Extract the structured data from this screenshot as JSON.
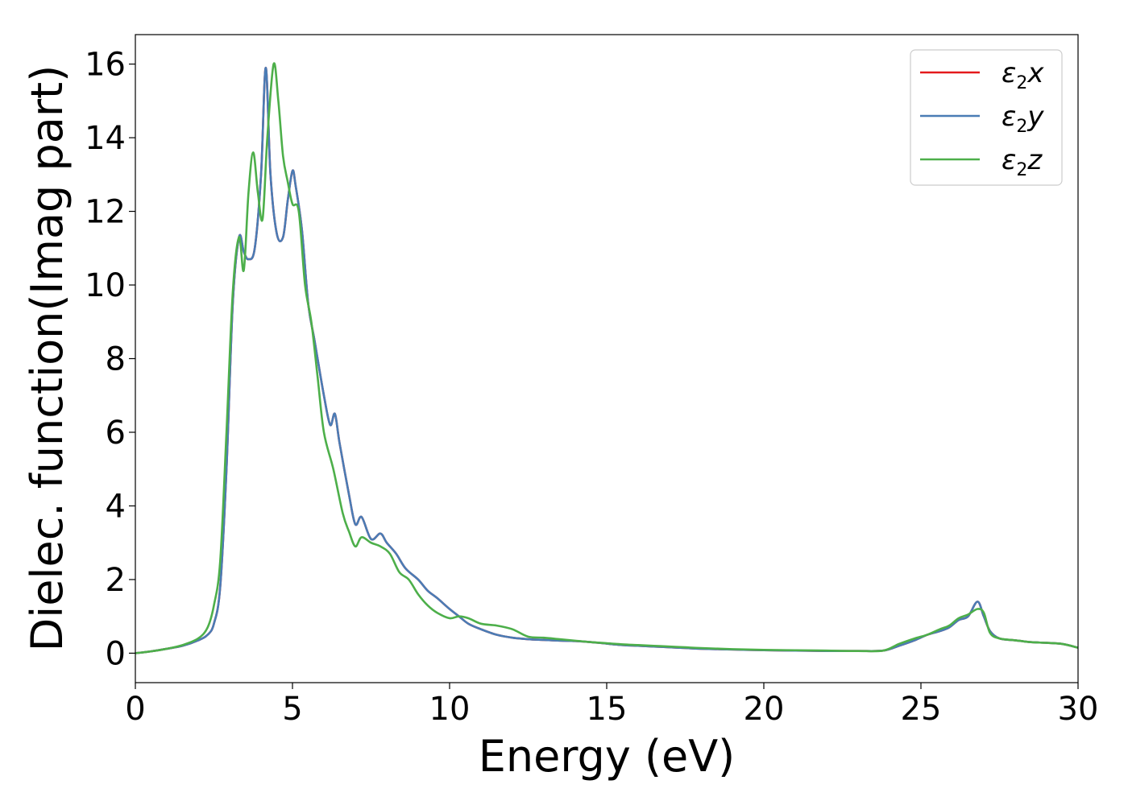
{
  "chart_data": {
    "type": "line",
    "title": "",
    "xlabel": "Energy (eV)",
    "ylabel": "Dielec. function(Imag part)",
    "xlim": [
      0,
      30
    ],
    "ylim": [
      -0.8,
      16.8
    ],
    "xticks": [
      0,
      5,
      10,
      15,
      20,
      25,
      30
    ],
    "xtick_labels": [
      "0",
      "5",
      "10",
      "15",
      "20",
      "25",
      "30"
    ],
    "yticks": [
      0,
      2,
      4,
      6,
      8,
      10,
      12,
      14,
      16
    ],
    "ytick_labels": [
      "0",
      "2",
      "4",
      "6",
      "8",
      "10",
      "12",
      "14",
      "16"
    ],
    "grid": false,
    "legend_position": "top-right",
    "series": [
      {
        "name": "ε2x",
        "name_main": "ε",
        "name_sub": "2",
        "name_tail": "x",
        "color": "#e41a1c",
        "x": [
          0,
          0.5,
          1,
          1.5,
          2,
          2.3,
          2.5,
          2.7,
          2.9,
          3.1,
          3.3,
          3.45,
          3.6,
          3.8,
          4,
          4.15,
          4.3,
          4.5,
          4.7,
          4.85,
          5,
          5.1,
          5.3,
          5.5,
          5.7,
          6,
          6.2,
          6.35,
          6.5,
          6.8,
          7,
          7.2,
          7.5,
          7.8,
          8,
          8.3,
          8.6,
          9,
          9.3,
          9.6,
          10,
          10.3,
          10.6,
          11,
          11.5,
          12,
          12.5,
          13,
          13.5,
          14,
          14.5,
          15,
          15.5,
          16,
          16.5,
          17,
          17.5,
          18,
          19,
          20,
          21,
          22,
          23,
          23.8,
          24.3,
          24.8,
          25.2,
          25.6,
          25.9,
          26.2,
          26.5,
          26.8,
          27,
          27.2,
          27.5,
          28,
          28.5,
          29,
          29.5,
          30
        ],
        "y": [
          0,
          0.05,
          0.12,
          0.2,
          0.35,
          0.5,
          0.8,
          1.8,
          5,
          9.5,
          11.3,
          10.9,
          10.7,
          11,
          13,
          15.9,
          13,
          11.4,
          11.3,
          12.3,
          13.1,
          12.7,
          11.5,
          9.5,
          8.5,
          7,
          6.2,
          6.5,
          5.7,
          4.3,
          3.5,
          3.7,
          3.1,
          3.25,
          3,
          2.7,
          2.3,
          2,
          1.7,
          1.5,
          1.2,
          1,
          0.8,
          0.65,
          0.5,
          0.42,
          0.38,
          0.36,
          0.34,
          0.33,
          0.3,
          0.26,
          0.22,
          0.2,
          0.18,
          0.16,
          0.14,
          0.12,
          0.1,
          0.08,
          0.07,
          0.06,
          0.06,
          0.07,
          0.2,
          0.35,
          0.5,
          0.6,
          0.7,
          0.9,
          1,
          1.4,
          1,
          0.6,
          0.4,
          0.35,
          0.3,
          0.28,
          0.25,
          0.15
        ]
      },
      {
        "name": "ε2y",
        "name_main": "ε",
        "name_sub": "2",
        "name_tail": "y",
        "color": "#4a7cb5",
        "x": [
          0,
          0.5,
          1,
          1.5,
          2,
          2.3,
          2.5,
          2.7,
          2.9,
          3.1,
          3.3,
          3.45,
          3.6,
          3.8,
          4,
          4.15,
          4.3,
          4.5,
          4.7,
          4.85,
          5,
          5.1,
          5.3,
          5.5,
          5.7,
          6,
          6.2,
          6.35,
          6.5,
          6.8,
          7,
          7.2,
          7.5,
          7.8,
          8,
          8.3,
          8.6,
          9,
          9.3,
          9.6,
          10,
          10.3,
          10.6,
          11,
          11.5,
          12,
          12.5,
          13,
          13.5,
          14,
          14.5,
          15,
          15.5,
          16,
          16.5,
          17,
          17.5,
          18,
          19,
          20,
          21,
          22,
          23,
          23.8,
          24.3,
          24.8,
          25.2,
          25.6,
          25.9,
          26.2,
          26.5,
          26.8,
          27,
          27.2,
          27.5,
          28,
          28.5,
          29,
          29.5,
          30
        ],
        "y": [
          0,
          0.05,
          0.12,
          0.2,
          0.35,
          0.5,
          0.8,
          1.8,
          5,
          9.5,
          11.3,
          10.9,
          10.7,
          11,
          13,
          15.9,
          13,
          11.4,
          11.3,
          12.3,
          13.1,
          12.7,
          11.5,
          9.5,
          8.5,
          7,
          6.2,
          6.5,
          5.7,
          4.3,
          3.5,
          3.7,
          3.1,
          3.25,
          3,
          2.7,
          2.3,
          2,
          1.7,
          1.5,
          1.2,
          1,
          0.8,
          0.65,
          0.5,
          0.42,
          0.38,
          0.36,
          0.34,
          0.33,
          0.3,
          0.26,
          0.22,
          0.2,
          0.18,
          0.16,
          0.14,
          0.12,
          0.1,
          0.08,
          0.07,
          0.06,
          0.06,
          0.07,
          0.2,
          0.35,
          0.5,
          0.6,
          0.7,
          0.9,
          1,
          1.4,
          1,
          0.6,
          0.4,
          0.35,
          0.3,
          0.28,
          0.25,
          0.15
        ]
      },
      {
        "name": "ε2z",
        "name_main": "ε",
        "name_sub": "2",
        "name_tail": "z",
        "color": "#4daf4a",
        "x": [
          0,
          0.5,
          1,
          1.5,
          2,
          2.3,
          2.5,
          2.7,
          2.9,
          3.1,
          3.3,
          3.45,
          3.6,
          3.75,
          3.9,
          4.05,
          4.2,
          4.4,
          4.55,
          4.7,
          4.85,
          5,
          5.2,
          5.4,
          5.6,
          5.8,
          6,
          6.3,
          6.6,
          6.8,
          7,
          7.2,
          7.5,
          7.8,
          8.1,
          8.4,
          8.7,
          9,
          9.3,
          9.6,
          10,
          10.3,
          10.6,
          11,
          11.5,
          12,
          12.5,
          13,
          13.5,
          14,
          14.5,
          15,
          15.5,
          16,
          16.5,
          17,
          17.5,
          18,
          19,
          20,
          21,
          22,
          23,
          23.8,
          24.3,
          24.8,
          25.2,
          25.6,
          25.9,
          26.2,
          26.5,
          26.8,
          27,
          27.2,
          27.5,
          28,
          28.5,
          29,
          29.5,
          30
        ],
        "y": [
          0,
          0.05,
          0.12,
          0.22,
          0.4,
          0.7,
          1.3,
          2.5,
          6,
          9.8,
          11.3,
          10.4,
          12.5,
          13.6,
          12.5,
          11.8,
          14,
          16,
          15,
          13.5,
          12.8,
          12.2,
          12,
          10,
          9,
          7.5,
          6,
          5,
          3.8,
          3.3,
          2.9,
          3.15,
          3,
          2.9,
          2.7,
          2.2,
          2,
          1.6,
          1.3,
          1.1,
          0.95,
          1,
          0.95,
          0.8,
          0.75,
          0.65,
          0.45,
          0.42,
          0.38,
          0.34,
          0.3,
          0.27,
          0.24,
          0.22,
          0.2,
          0.18,
          0.16,
          0.14,
          0.11,
          0.09,
          0.08,
          0.07,
          0.06,
          0.07,
          0.25,
          0.4,
          0.5,
          0.65,
          0.75,
          0.95,
          1.05,
          1.2,
          1.1,
          0.55,
          0.4,
          0.35,
          0.3,
          0.28,
          0.25,
          0.15
        ]
      }
    ]
  }
}
